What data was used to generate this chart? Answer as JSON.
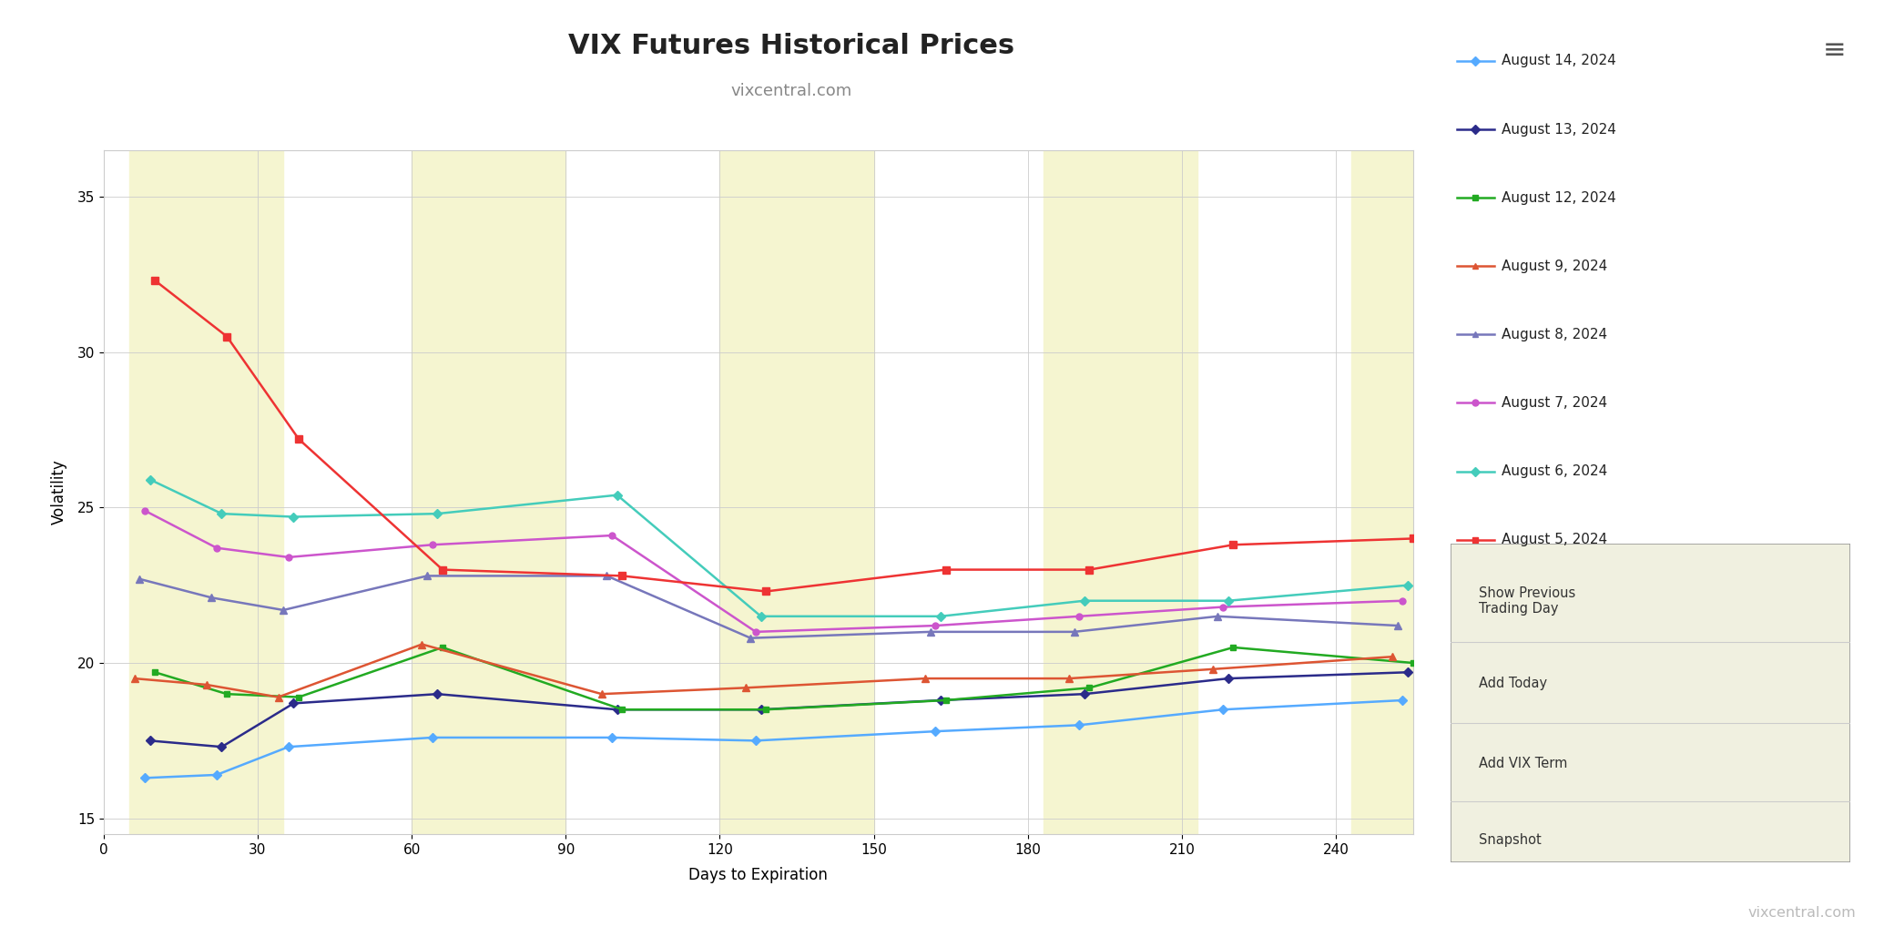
{
  "title": "VIX Futures Historical Prices",
  "subtitle": "vixcentral.com",
  "xlabel": "Days to Expiration",
  "ylabel": "Volatility",
  "watermark": "vixcentral.com",
  "xlim": [
    0,
    255
  ],
  "ylim": [
    14.5,
    36.5
  ],
  "yticks": [
    15,
    20,
    25,
    30,
    35
  ],
  "xticks": [
    0,
    30,
    60,
    90,
    120,
    150,
    180,
    210,
    240
  ],
  "background_color": "#ffffff",
  "plot_bg_color": "#ffffff",
  "yellow_band_color": "#f5f5d0",
  "yellow_band_ranges": [
    [
      5,
      35
    ],
    [
      60,
      90
    ],
    [
      120,
      150
    ],
    [
      183,
      213
    ],
    [
      243,
      255
    ]
  ],
  "series": [
    {
      "label": "August 14, 2024",
      "color": "#55aaff",
      "marker": "D",
      "markersize": 5,
      "x": [
        8,
        22,
        36,
        64,
        99,
        127,
        162,
        190,
        218,
        253
      ],
      "y": [
        16.3,
        16.4,
        17.3,
        17.6,
        17.6,
        17.5,
        17.8,
        18.0,
        18.5,
        18.8
      ]
    },
    {
      "label": "August 13, 2024",
      "color": "#2b2b8a",
      "marker": "D",
      "markersize": 5,
      "x": [
        9,
        23,
        37,
        65,
        100,
        128,
        163,
        191,
        219,
        254
      ],
      "y": [
        17.5,
        17.3,
        18.7,
        19.0,
        18.5,
        18.5,
        18.8,
        19.0,
        19.5,
        19.7
      ]
    },
    {
      "label": "August 12, 2024",
      "color": "#22aa22",
      "marker": "s",
      "markersize": 5,
      "x": [
        10,
        24,
        38,
        66,
        101,
        129,
        164,
        192,
        220,
        255
      ],
      "y": [
        19.7,
        19.0,
        18.9,
        20.5,
        18.5,
        18.5,
        18.8,
        19.2,
        20.5,
        20.0
      ]
    },
    {
      "label": "August 9, 2024",
      "color": "#dd5533",
      "marker": "^",
      "markersize": 6,
      "x": [
        6,
        20,
        34,
        62,
        97,
        125,
        160,
        188,
        216,
        251
      ],
      "y": [
        19.5,
        19.3,
        18.9,
        20.6,
        19.0,
        19.2,
        19.5,
        19.5,
        19.8,
        20.2
      ]
    },
    {
      "label": "August 8, 2024",
      "color": "#7777bb",
      "marker": "^",
      "markersize": 6,
      "x": [
        7,
        21,
        35,
        63,
        98,
        126,
        161,
        189,
        217,
        252
      ],
      "y": [
        22.7,
        22.1,
        21.7,
        22.8,
        22.8,
        20.8,
        21.0,
        21.0,
        21.5,
        21.2
      ]
    },
    {
      "label": "August 7, 2024",
      "color": "#cc55cc",
      "marker": "o",
      "markersize": 5,
      "x": [
        8,
        22,
        36,
        64,
        99,
        127,
        162,
        190,
        218,
        253
      ],
      "y": [
        24.9,
        23.7,
        23.4,
        23.8,
        24.1,
        21.0,
        21.2,
        21.5,
        21.8,
        22.0
      ]
    },
    {
      "label": "August 6, 2024",
      "color": "#44ccbb",
      "marker": "D",
      "markersize": 5,
      "x": [
        9,
        23,
        37,
        65,
        100,
        128,
        163,
        191,
        219,
        254
      ],
      "y": [
        25.9,
        24.8,
        24.7,
        24.8,
        25.4,
        21.5,
        21.5,
        22.0,
        22.0,
        22.5
      ]
    },
    {
      "label": "August 5, 2024",
      "color": "#ee3333",
      "marker": "s",
      "markersize": 6,
      "x": [
        10,
        24,
        38,
        66,
        101,
        129,
        164,
        192,
        220,
        255
      ],
      "y": [
        32.3,
        30.5,
        27.2,
        23.0,
        22.8,
        22.3,
        23.0,
        23.0,
        23.8,
        24.0
      ]
    }
  ],
  "legend_items": [
    {
      "label": "August 14, 2024",
      "color": "#55aaff",
      "marker": "D"
    },
    {
      "label": "August 13, 2024",
      "color": "#2b2b8a",
      "marker": "D"
    },
    {
      "label": "August 12, 2024",
      "color": "#22aa22",
      "marker": "s"
    },
    {
      "label": "August 9, 2024",
      "color": "#dd5533",
      "marker": "^"
    },
    {
      "label": "August 8, 2024",
      "color": "#7777bb",
      "marker": "^"
    },
    {
      "label": "August 7, 2024",
      "color": "#cc55cc",
      "marker": "o"
    },
    {
      "label": "August 6, 2024",
      "color": "#44ccbb",
      "marker": "D"
    },
    {
      "label": "August 5, 2024",
      "color": "#ee3333",
      "marker": "s"
    }
  ],
  "button_labels": [
    "Show Previous\nTrading Day",
    "Add Today",
    "Add VIX Term",
    "Snapshot"
  ],
  "title_fontsize": 22,
  "subtitle_fontsize": 13,
  "axis_label_fontsize": 12,
  "tick_fontsize": 11,
  "legend_fontsize": 11,
  "button_fontsize": 10.5
}
